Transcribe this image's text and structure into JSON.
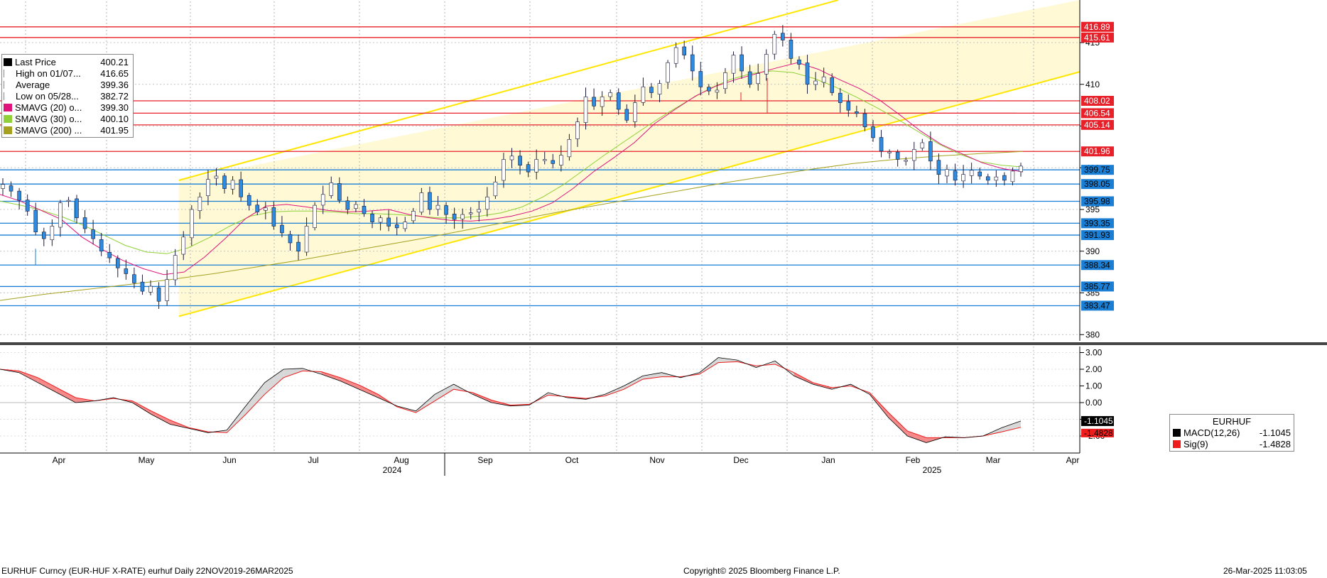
{
  "legend": {
    "items": [
      {
        "name": "Last Price",
        "value": "400.21",
        "color": "#000000"
      },
      {
        "name": "High on 01/07...",
        "value": "416.65",
        "color": "#888888"
      },
      {
        "name": "Average",
        "value": "399.36",
        "color": "#888888"
      },
      {
        "name": "Low on 05/28...",
        "value": "382.72",
        "color": "#888888"
      },
      {
        "name": "SMAVG (20)   o...",
        "value": "399.30",
        "color": "#e0137c"
      },
      {
        "name": "SMAVG (30)   o...",
        "value": "400.10",
        "color": "#8fd136"
      },
      {
        "name": "SMAVG (200)  ...",
        "value": "401.95",
        "color": "#a6a11f"
      }
    ]
  },
  "macd_legend": {
    "title": "EURHUF",
    "items": [
      {
        "name": "MACD(12,26)",
        "value": "-1.1045",
        "color": "#000000"
      },
      {
        "name": "Sig(9)",
        "value": "-1.4828",
        "color": "#ee1c1c"
      }
    ]
  },
  "footer": {
    "left": "EURHUF Curncy (EUR-HUF X-RATE) eurhuf  Daily 22NOV2019-26MAR2025",
    "center": "Copyright© 2025 Bloomberg Finance L.P.",
    "right": "26-Mar-2025 11:03:05"
  },
  "chart_data": [
    {
      "type": "candlestick",
      "title": "",
      "x_labels": [
        "Apr",
        "May",
        "Jun",
        "Jul",
        "Aug",
        "Sep",
        "Oct",
        "Nov",
        "Dec",
        "Jan",
        "Feb",
        "Mar",
        "Apr"
      ],
      "year_labels": [
        "2024",
        "2025"
      ],
      "y_ticks": [
        "380",
        "385",
        "390",
        "395",
        "400",
        "405",
        "410",
        "415"
      ],
      "ylim": [
        379,
        420
      ],
      "grid": true,
      "red_levels": [
        {
          "value": 416.89,
          "label": "416.89"
        },
        {
          "value": 415.61,
          "label": "415.61"
        },
        {
          "value": 408.02,
          "label": "408.02"
        },
        {
          "value": 406.54,
          "label": "406.54"
        },
        {
          "value": 405.14,
          "label": "405.14"
        },
        {
          "value": 401.96,
          "label": "401.96"
        }
      ],
      "blue_levels": [
        {
          "value": 399.75,
          "label": "399.75"
        },
        {
          "value": 398.05,
          "label": "398.05"
        },
        {
          "value": 395.98,
          "label": "395.98"
        },
        {
          "value": 393.35,
          "label": "393.35"
        },
        {
          "value": 391.93,
          "label": "391.93"
        },
        {
          "value": 388.34,
          "label": "388.34"
        },
        {
          "value": 385.77,
          "label": "385.77"
        },
        {
          "value": 383.47,
          "label": "383.47"
        }
      ],
      "channel": {
        "lower_start": 382.2,
        "lower_end": 411.5,
        "upper_start": 398.5,
        "upper_end": 430
      },
      "series": [
        {
          "name": "Last Price",
          "values": [
            398.0,
            397.2,
            396.1,
            394.8,
            392.3,
            391.5,
            393.0,
            395.8,
            396.1,
            394.0,
            392.7,
            391.5,
            390.0,
            389.2,
            388.0,
            387.3,
            386.2,
            385.2,
            385.8,
            384.0,
            386.6,
            389.5,
            391.7,
            395.0,
            396.5,
            398.6,
            399.0,
            397.5,
            398.5,
            396.5,
            395.5,
            394.7,
            395.2,
            393.0,
            392.2,
            391.0,
            390.0,
            393.0,
            395.5,
            396.8,
            398.2,
            396.1,
            395.0,
            395.6,
            394.5,
            393.5,
            394.0,
            393.0,
            392.8,
            393.5,
            394.8,
            397.0,
            395.0,
            395.5,
            394.4,
            393.8,
            394.4,
            394.6,
            395.0,
            396.5,
            398.3,
            401.0,
            401.4,
            400.3,
            399.5,
            401.0,
            401.0,
            400.5,
            401.5,
            403.4,
            405.5,
            408.5,
            407.4,
            408.5,
            409.0,
            407.0,
            405.7,
            407.8,
            409.7,
            409.0,
            410.1,
            412.6,
            414.4,
            413.5,
            411.6,
            409.7,
            409.2,
            409.3,
            411.4,
            413.5,
            411.6,
            410.0,
            411.3,
            413.6,
            416.0,
            415.3,
            413.1,
            412.4,
            410.0,
            410.4,
            410.9,
            409.0,
            407.8,
            406.9,
            406.5,
            404.9,
            403.6,
            402.0,
            401.9,
            401.0,
            400.9,
            402.2,
            403.0,
            400.8,
            399.2,
            399.8,
            398.5,
            399.2,
            399.7,
            399.0,
            398.5,
            398.9,
            398.5,
            399.6,
            400.2
          ],
          "candle_count": 125
        },
        {
          "name": "SMAVG (20)",
          "color": "#e0137c",
          "values": [
            396.8,
            396.0,
            394.9,
            393.8,
            391.7,
            390.2,
            388.9,
            387.9,
            387.2,
            387.5,
            389.3,
            391.5,
            393.9,
            395.4,
            395.6,
            395.3,
            394.9,
            394.7,
            394.8,
            395.0,
            394.4,
            394.0,
            393.7,
            393.6,
            393.8,
            394.2,
            394.8,
            395.8,
            397.5,
            399.5,
            401.2,
            403.0,
            405.3,
            407.0,
            408.6,
            409.8,
            410.6,
            411.3,
            412.0,
            412.6,
            411.8,
            410.6,
            409.5,
            408.1,
            406.3,
            404.4,
            402.8,
            401.7,
            400.6,
            399.9,
            399.5
          ]
        },
        {
          "name": "SMAVG (30)",
          "color": "#8fd136",
          "values": [
            396.0,
            395.5,
            394.9,
            394.1,
            393.1,
            391.9,
            390.7,
            389.9,
            389.7,
            390.4,
            391.6,
            393.0,
            394.2,
            394.7,
            394.8,
            394.8,
            394.7,
            394.5,
            394.5,
            394.4,
            394.2,
            394.0,
            394.0,
            394.2,
            394.6,
            395.3,
            396.5,
            398.0,
            399.8,
            401.6,
            403.3,
            405.0,
            406.6,
            408.1,
            409.5,
            410.6,
            411.3,
            411.6,
            411.4,
            410.7,
            409.7,
            408.5,
            407.2,
            405.8,
            404.3,
            402.8,
            401.6,
            400.7,
            400.3,
            400.1
          ]
        },
        {
          "name": "SMAVG (200)",
          "color": "#a6a11f",
          "values": [
            384.1,
            384.8,
            385.4,
            386.0,
            386.6,
            387.3,
            388.1,
            388.9,
            389.8,
            390.7,
            391.6,
            392.6,
            393.6,
            394.6,
            395.5,
            396.4,
            397.3,
            398.2,
            399.0,
            399.8,
            400.5,
            401.0,
            401.4,
            401.7,
            401.95
          ]
        }
      ]
    },
    {
      "type": "line",
      "title": "",
      "y_ticks": [
        "3.00",
        "2.00",
        "1.00",
        "0.00",
        "-1.00",
        "-2.00"
      ],
      "ylim": [
        -3,
        3.2
      ],
      "grid": true,
      "series": [
        {
          "name": "MACD(12,26)",
          "color": "#000000",
          "values": [
            2.0,
            1.8,
            1.2,
            0.6,
            0.0,
            0.1,
            0.3,
            0.0,
            -0.7,
            -1.3,
            -1.55,
            -1.8,
            -1.65,
            -0.2,
            1.2,
            2.0,
            2.05,
            1.7,
            1.3,
            0.8,
            0.3,
            -0.2,
            -0.5,
            0.5,
            1.1,
            0.5,
            0.0,
            -0.2,
            -0.15,
            0.6,
            0.3,
            0.2,
            0.5,
            1.0,
            1.6,
            1.8,
            1.5,
            1.8,
            2.7,
            2.55,
            2.1,
            2.5,
            1.6,
            1.1,
            0.8,
            1.1,
            0.5,
            -0.9,
            -2.0,
            -2.4,
            -2.05,
            -2.1,
            -2.0,
            -1.5,
            -1.1
          ]
        },
        {
          "name": "Sig(9)",
          "color": "#ee1c1c",
          "values": [
            2.0,
            1.9,
            1.5,
            0.9,
            0.3,
            0.1,
            0.25,
            0.1,
            -0.5,
            -1.05,
            -1.5,
            -1.75,
            -1.8,
            -0.7,
            0.5,
            1.5,
            1.9,
            1.85,
            1.5,
            1.05,
            0.5,
            -0.25,
            -0.6,
            0.1,
            0.8,
            0.6,
            0.15,
            -0.15,
            -0.1,
            0.45,
            0.35,
            0.25,
            0.4,
            0.8,
            1.4,
            1.55,
            1.55,
            1.7,
            2.4,
            2.45,
            2.2,
            2.3,
            1.8,
            1.2,
            0.9,
            1.0,
            0.6,
            -0.6,
            -1.7,
            -2.1,
            -2.1,
            -2.1,
            -2.0,
            -1.75,
            -1.48
          ]
        }
      ]
    }
  ]
}
